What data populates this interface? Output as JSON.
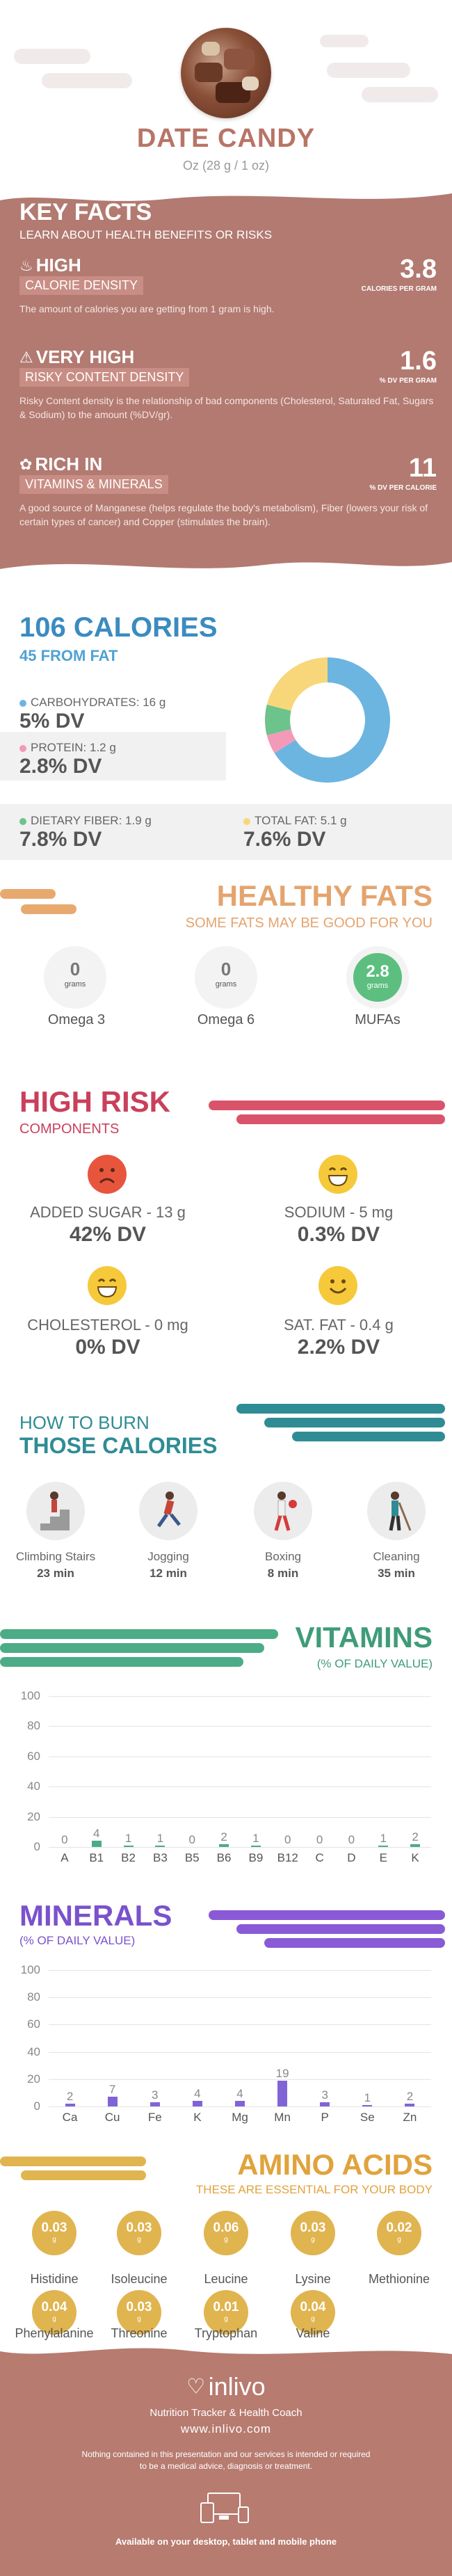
{
  "header": {
    "title": "DATE CANDY",
    "serving": "Oz (28 g / 1 oz)"
  },
  "key_facts": {
    "title": "KEY FACTS",
    "subtitle": "LEARN ABOUT HEALTH BENEFITS OR RISKS",
    "items": [
      {
        "level": "HIGH",
        "name": "CALORIE DENSITY",
        "value": "3.8",
        "unit": "CALORIES PER GRAM",
        "desc": "The amount of calories you are getting from 1 gram is high.",
        "icon": "flame-icon"
      },
      {
        "level": "VERY HIGH",
        "name": "RISKY CONTENT DENSITY",
        "value": "1.6",
        "unit": "% DV PER GRAM",
        "desc": "Risky Content density is the relationship of bad components (Cholesterol, Saturated Fat, Sugars & Sodium) to the amount (%DV/gr).",
        "icon": "warning-icon"
      },
      {
        "level": "RICH  IN",
        "name": "VITAMINS & MINERALS",
        "value": "11",
        "unit": "% DV PER CALORIE",
        "desc": "A good source of Manganese (helps regulate the body's metabolism), Fiber (lowers your risk of certain types of cancer) and Copper (stimulates the brain).",
        "icon": "leaf-icon"
      }
    ]
  },
  "calories": {
    "title": "106 CALORIES",
    "subtitle": "45 FROM FAT",
    "nutrients": [
      {
        "label": "CARBOHYDRATES: 16 g",
        "value": "5% DV",
        "color": "#6cb5e0"
      },
      {
        "label": "PROTEIN: 1.2 g",
        "value": "2.8% DV",
        "color": "#f29ab7"
      },
      {
        "label": "DIETARY FIBER: 1.9 g",
        "value": "7.8% DV",
        "color": "#6cc38b"
      },
      {
        "label": "TOTAL FAT: 5.1 g",
        "value": "7.6% DV",
        "color": "#f7d77a"
      }
    ],
    "donut": [
      {
        "name": "carbohydrates",
        "grams": 16,
        "color": "#6cb5e0"
      },
      {
        "name": "protein",
        "grams": 1.2,
        "color": "#f29ab7"
      },
      {
        "name": "dietary fiber",
        "grams": 1.9,
        "color": "#6cc38b"
      },
      {
        "name": "total fat",
        "grams": 5.1,
        "color": "#f7d77a"
      }
    ]
  },
  "healthy_fats": {
    "title": "HEALTHY FATS",
    "subtitle": "SOME FATS MAY BE GOOD FOR YOU",
    "items": [
      {
        "value": "0",
        "unit": "grams",
        "label": "Omega 3",
        "highlight": false
      },
      {
        "value": "0",
        "unit": "grams",
        "label": "Omega 6",
        "highlight": false
      },
      {
        "value": "2.8",
        "unit": "grams",
        "label": "MUFAs",
        "highlight": true
      }
    ]
  },
  "high_risk": {
    "title": "HIGH RISK",
    "subtitle": "COMPONENTS",
    "items": [
      {
        "label": "ADDED SUGAR - 13 g",
        "value": "42% DV",
        "face": "sad-face-icon",
        "color": "#e8553d"
      },
      {
        "label": "SODIUM - 5 mg",
        "value": "0.3% DV",
        "face": "grin-face-icon",
        "color": "#f5c93a"
      },
      {
        "label": "CHOLESTEROL - 0 mg",
        "value": "0% DV",
        "face": "grin-face-icon",
        "color": "#f5c93a"
      },
      {
        "label": "SAT. FAT - 0.4 g",
        "value": "2.2% DV",
        "face": "smile-face-icon",
        "color": "#f5c93a"
      }
    ]
  },
  "burn": {
    "title1": "HOW TO BURN",
    "title2": "THOSE CALORIES",
    "activities": [
      {
        "name": "Climbing Stairs",
        "time": "23 min"
      },
      {
        "name": "Jogging",
        "time": "12 min"
      },
      {
        "name": "Boxing",
        "time": "8 min"
      },
      {
        "name": "Cleaning",
        "time": "35 min"
      }
    ]
  },
  "vitamins": {
    "title": "VITAMINS",
    "subtitle": "(% OF DAILY VALUE)"
  },
  "minerals": {
    "title": "MINERALS",
    "subtitle": "(% OF DAILY VALUE)"
  },
  "chart_data": [
    {
      "type": "bar",
      "name": "vitamins",
      "categories": [
        "A",
        "B1",
        "B2",
        "B3",
        "B5",
        "B6",
        "B9",
        "B12",
        "C",
        "D",
        "E",
        "K"
      ],
      "values": [
        0,
        4,
        1,
        1,
        0,
        2,
        1,
        0,
        0,
        0,
        1,
        2
      ],
      "yticks": [
        "100",
        "80",
        "60",
        "40",
        "20",
        "0"
      ],
      "ylim": [
        0,
        100
      ],
      "color": "#4cac86"
    },
    {
      "type": "bar",
      "name": "minerals",
      "categories": [
        "Ca",
        "Cu",
        "Fe",
        "K",
        "Mg",
        "Mn",
        "P",
        "Se",
        "Zn"
      ],
      "values": [
        2,
        7,
        3,
        4,
        4,
        19,
        3,
        1,
        2
      ],
      "yticks": [
        "100",
        "80",
        "60",
        "40",
        "20",
        "0"
      ],
      "ylim": [
        0,
        100
      ],
      "color": "#8064d6"
    }
  ],
  "amino": {
    "title": "AMINO ACIDS",
    "subtitle": "THESE ARE ESSENTIAL FOR YOUR BODY",
    "items": [
      {
        "value": "0.03",
        "unit": "g",
        "label": "Histidine"
      },
      {
        "value": "0.03",
        "unit": "g",
        "label": "Isoleucine"
      },
      {
        "value": "0.06",
        "unit": "g",
        "label": "Leucine"
      },
      {
        "value": "0.03",
        "unit": "g",
        "label": "Lysine"
      },
      {
        "value": "0.02",
        "unit": "g",
        "label": "Methionine"
      },
      {
        "value": "0.04",
        "unit": "g",
        "label": "Phenylalanine"
      },
      {
        "value": "0.03",
        "unit": "g",
        "label": "Threonine"
      },
      {
        "value": "0.01",
        "unit": "g",
        "label": "Tryptophan"
      },
      {
        "value": "0.04",
        "unit": "g",
        "label": "Valine"
      }
    ]
  },
  "footer": {
    "brand": "inlivo",
    "tagline": "Nutrition Tracker & Health Coach",
    "url": "www.inlivo.com",
    "disclaimer": "Nothing contained in this presentation and our services is intended or required to be a medical advice, diagnosis or treatment.",
    "available": "Available on your desktop, tablet and mobile phone"
  }
}
